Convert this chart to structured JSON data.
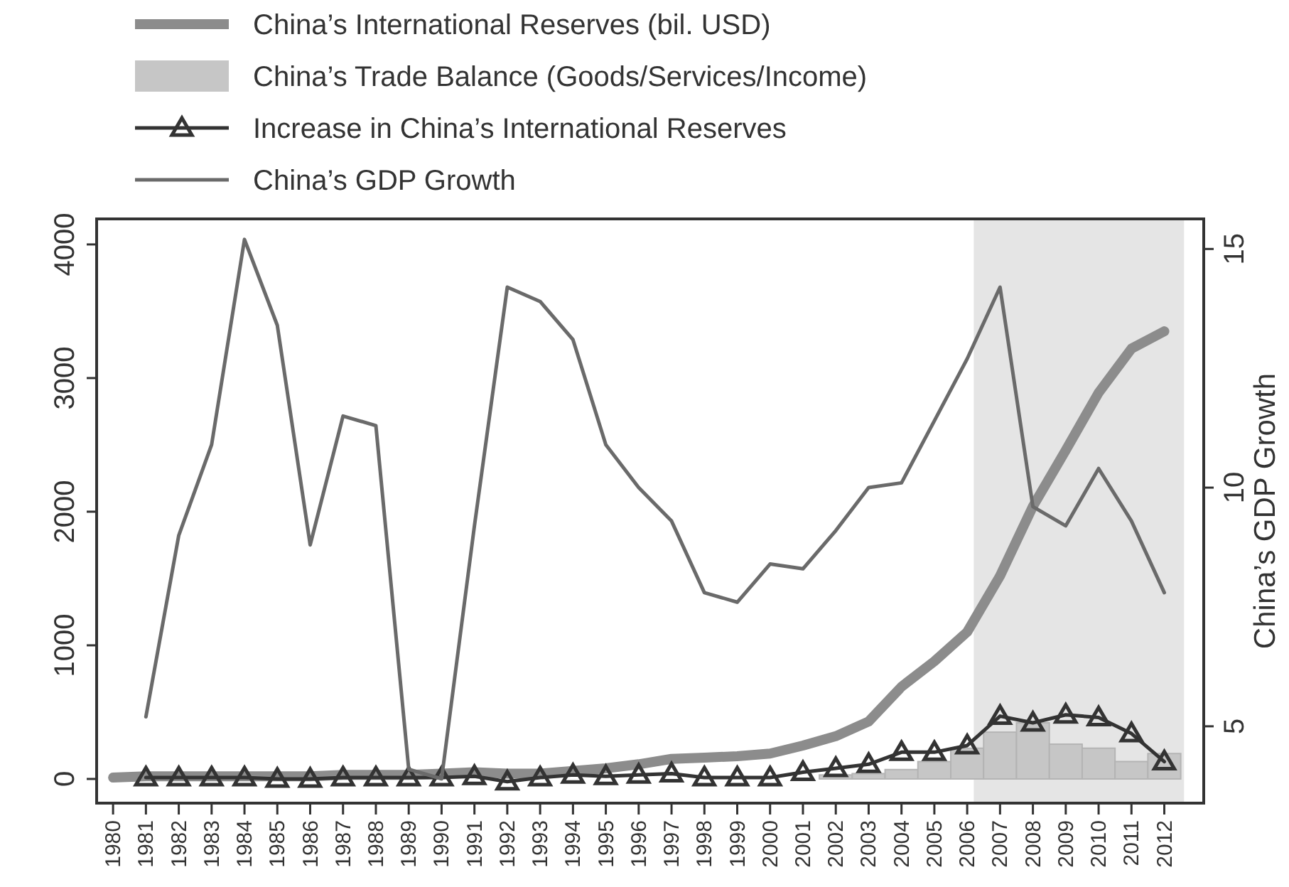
{
  "chart_data": {
    "type": "line",
    "y2label": "China’s GDP Growth",
    "x": [
      1980,
      1981,
      1982,
      1983,
      1984,
      1985,
      1986,
      1987,
      1988,
      1989,
      1990,
      1991,
      1992,
      1993,
      1994,
      1995,
      1996,
      1997,
      1998,
      1999,
      2000,
      2001,
      2002,
      2003,
      2004,
      2005,
      2006,
      2007,
      2008,
      2009,
      2010,
      2011,
      2012
    ],
    "xlim": [
      1979.5,
      2013.2
    ],
    "xticks": [
      1980,
      1981,
      1982,
      1983,
      1984,
      1985,
      1986,
      1987,
      1988,
      1989,
      1990,
      1991,
      1992,
      1993,
      1994,
      1995,
      1996,
      1997,
      1998,
      1999,
      2000,
      2001,
      2002,
      2003,
      2004,
      2005,
      2006,
      2007,
      2008,
      2009,
      2010,
      2011,
      2012
    ],
    "ylim": [
      -181,
      4191
    ],
    "yticks": [
      0,
      1000,
      2000,
      3000,
      4000
    ],
    "y2lim": [
      3.39,
      15.63
    ],
    "y2ticks": [
      5,
      10,
      15
    ],
    "legend": "top",
    "grid": false,
    "bands": [
      {
        "axis": "x",
        "from": 2006.2,
        "to": 2012.6,
        "color": "#e5e5e5"
      }
    ],
    "series": [
      {
        "name": "China’s International Reserves (bil. USD)",
        "color": "#8c8c8c",
        "marker": "none",
        "values": [
          10,
          20,
          20,
          20,
          20,
          20,
          20,
          30,
          30,
          30,
          40,
          50,
          40,
          40,
          60,
          80,
          110,
          150,
          160,
          170,
          190,
          250,
          320,
          430,
          690,
          880,
          1100,
          1520,
          2040,
          2460,
          2890,
          3220,
          3350
        ]
      },
      {
        "name": "China’s Trade Balance (Goods/Services/Income)",
        "type": "bar",
        "color": "#c6c6c6",
        "values": [
          null,
          null,
          null,
          null,
          null,
          null,
          null,
          null,
          null,
          null,
          null,
          null,
          null,
          null,
          null,
          null,
          null,
          null,
          null,
          null,
          null,
          null,
          30,
          40,
          70,
          130,
          230,
          350,
          420,
          260,
          230,
          130,
          190
        ]
      },
      {
        "name": "Increase in China’s International Reserves",
        "color": "#333333",
        "marker": "triangle",
        "values": [
          null,
          10,
          10,
          10,
          10,
          0,
          0,
          10,
          10,
          10,
          10,
          20,
          -20,
          10,
          30,
          20,
          30,
          40,
          10,
          10,
          10,
          50,
          80,
          110,
          200,
          200,
          250,
          470,
          420,
          480,
          460,
          340,
          130
        ]
      },
      {
        "name": "China’s GDP Growth",
        "axis": "y2",
        "color": "#6a6a6a",
        "marker": "none",
        "values": [
          null,
          5.2,
          9.0,
          10.9,
          15.2,
          13.4,
          8.8,
          11.5,
          11.3,
          4.1,
          3.9,
          9.2,
          14.2,
          13.9,
          13.1,
          10.9,
          10.0,
          9.3,
          7.8,
          7.6,
          8.4,
          8.3,
          9.1,
          10.0,
          10.1,
          11.4,
          12.7,
          14.2,
          9.6,
          9.2,
          10.4,
          9.3,
          7.8
        ]
      }
    ]
  }
}
